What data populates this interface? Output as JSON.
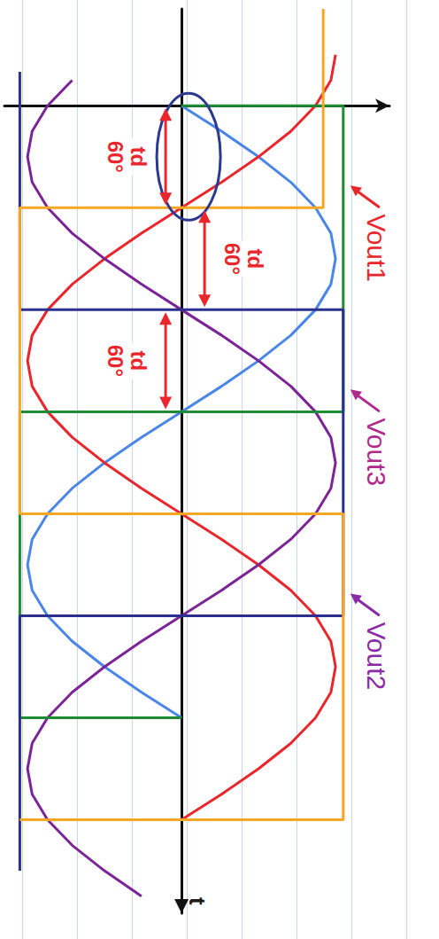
{
  "chart_data": {
    "type": "line",
    "xlabel": "t",
    "xlim": [
      -57,
      475
    ],
    "ylim": [
      -1.15,
      1.35
    ],
    "tick_labels": false,
    "grid": false,
    "series": [
      {
        "color": "#4a86e8",
        "line_style": "solid",
        "x": [
          0,
          15,
          30,
          45,
          60,
          75,
          90,
          105,
          120,
          135,
          150,
          165,
          180,
          195,
          210,
          225,
          240,
          255,
          270,
          285,
          300,
          315,
          330,
          345,
          360
        ],
        "values": [
          0,
          0.26,
          0.5,
          0.71,
          0.87,
          0.97,
          1,
          0.97,
          0.87,
          0.71,
          0.5,
          0.26,
          0,
          -0.26,
          -0.5,
          -0.71,
          -0.87,
          -0.97,
          -1,
          -0.97,
          -0.87,
          -0.71,
          -0.5,
          -0.26,
          0
        ]
      },
      {
        "color": "#e8262b",
        "line_style": "solid",
        "x": [
          -30,
          -15,
          0,
          15,
          30,
          45,
          60,
          75,
          90,
          105,
          120,
          135,
          150,
          165,
          180,
          195,
          210,
          225,
          240,
          255,
          270,
          285,
          300,
          315,
          330,
          345,
          360,
          375,
          390,
          405,
          420
        ],
        "values": [
          1,
          0.97,
          0.87,
          0.71,
          0.5,
          0.26,
          0,
          -0.26,
          -0.5,
          -0.71,
          -0.87,
          -0.97,
          -1,
          -0.97,
          -0.87,
          -0.71,
          -0.5,
          -0.26,
          0,
          0.26,
          0.5,
          0.71,
          0.87,
          0.97,
          1,
          0.97,
          0.87,
          0.71,
          0.5,
          0.26,
          0
        ]
      },
      {
        "color": "#7b2496",
        "line_style": "solid",
        "x": [
          -15,
          0,
          15,
          30,
          45,
          60,
          75,
          90,
          105,
          120,
          135,
          150,
          165,
          180,
          195,
          210,
          225,
          240,
          255,
          270,
          285,
          300,
          315,
          330,
          345,
          360,
          375,
          390,
          405,
          420,
          435,
          450,
          465
        ],
        "values": [
          -0.71,
          -0.87,
          -0.97,
          -1,
          -0.97,
          -0.87,
          -0.71,
          -0.5,
          -0.26,
          0,
          0.26,
          0.5,
          0.71,
          0.87,
          0.97,
          1,
          0.97,
          0.87,
          0.71,
          0.5,
          0.26,
          0,
          -0.26,
          -0.5,
          -0.71,
          -0.87,
          -0.97,
          -1,
          -0.97,
          -0.87,
          -0.71,
          -0.5,
          -0.26
        ]
      },
      {
        "name": "Vout1",
        "color": "#1e8c34",
        "line_style": "solid",
        "x": [
          0,
          0,
          180,
          180,
          360,
          360
        ],
        "values": [
          0,
          1.05,
          1.05,
          -1.05,
          -1.05,
          0
        ]
      },
      {
        "name": "Vout3",
        "color": "#2b2f8f",
        "line_style": "solid",
        "x": [
          -20,
          120,
          120,
          300,
          300,
          450
        ],
        "values": [
          -1.05,
          -1.05,
          1.05,
          1.05,
          -1.05,
          -1.05
        ]
      },
      {
        "name": "Vout2",
        "color": "#f5a623",
        "line_style": "solid",
        "x": [
          -57,
          60,
          60,
          240,
          240,
          420,
          420
        ],
        "values": [
          0.92,
          0.92,
          -1.05,
          -1.05,
          1.05,
          1.05,
          -1.05
        ]
      }
    ],
    "annotations": [
      {
        "label": "td",
        "from": 0,
        "value": 60,
        "value_label": "60°"
      },
      {
        "label": "td",
        "from": 60,
        "value": 60,
        "value_label": "60°"
      },
      {
        "label": "td",
        "from": 120,
        "value": 60,
        "value_label": "60°"
      }
    ]
  }
}
